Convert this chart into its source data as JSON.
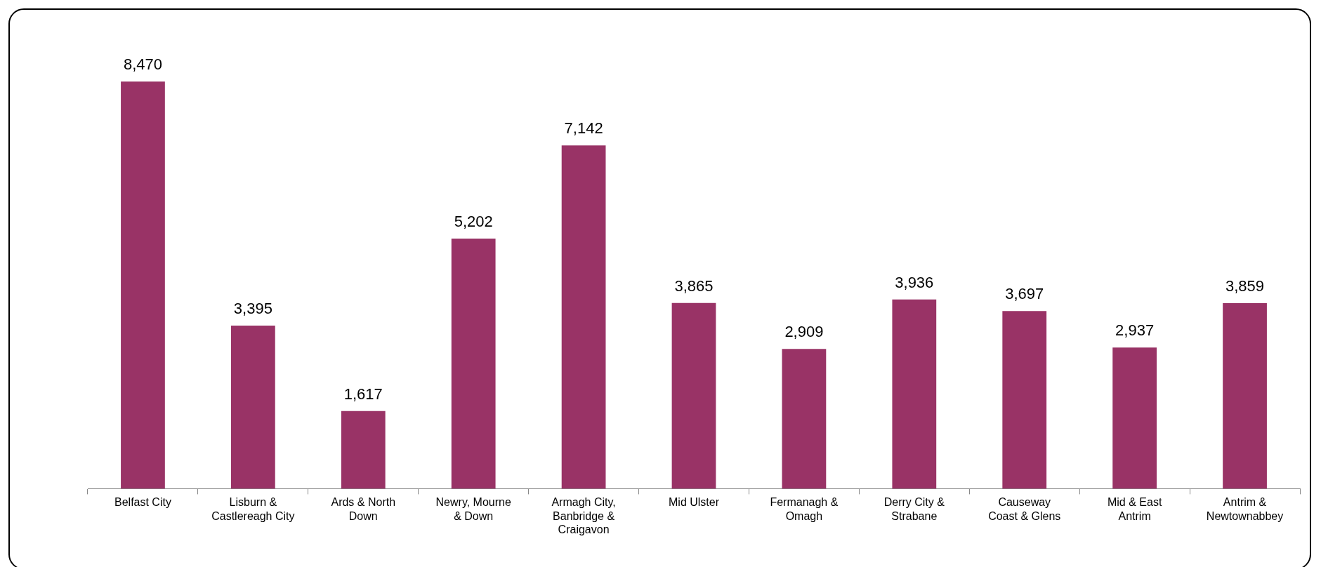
{
  "chart_data": {
    "type": "bar",
    "categories": [
      "Belfast City",
      "Lisburn & Castlereagh City",
      "Ards & North Down",
      "Newry, Mourne & Down",
      "Armagh City, Banbridge & Craigavon",
      "Mid Ulster",
      "Fermanagh & Omagh",
      "Derry City & Strabane",
      "Causeway Coast & Glens",
      "Mid & East Antrim",
      "Antrim & Newtownabbey"
    ],
    "values": [
      8470,
      3395,
      1617,
      5202,
      7142,
      3865,
      2909,
      3936,
      3697,
      2937,
      3859
    ],
    "value_labels": [
      "8,470",
      "3,395",
      "1,617",
      "5,202",
      "7,142",
      "3,865",
      "2,909",
      "3,936",
      "3,697",
      "2,937",
      "3,859"
    ],
    "color": "#993366",
    "grid": false,
    "legend": false,
    "tick_labels": "x"
  }
}
